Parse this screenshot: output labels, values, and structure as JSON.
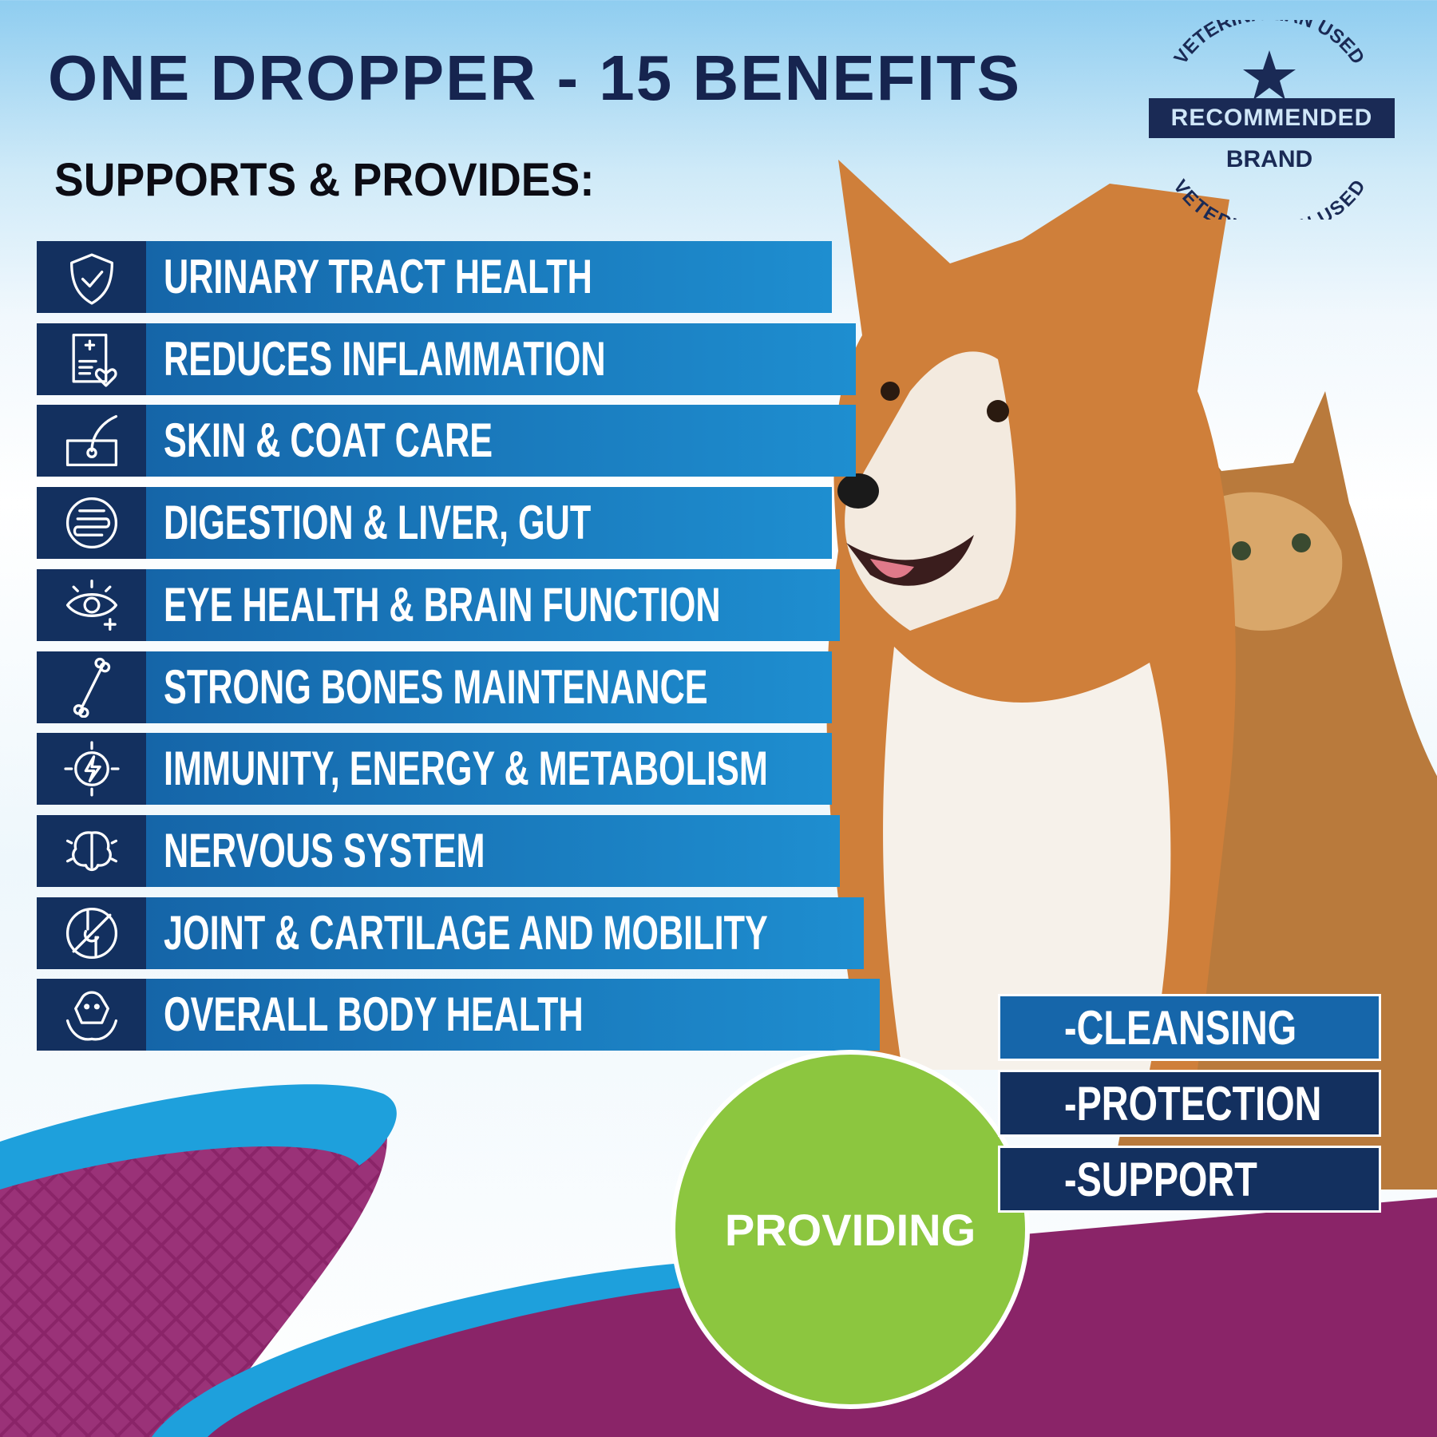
{
  "title": "ONE DROPPER - 15 BENEFITS",
  "subtitle": "SUPPORTS & PROVIDES:",
  "badge": {
    "arc_top": "VETERINARIAN USED",
    "ribbon": "RECOMMENDED",
    "brand": "BRAND",
    "arc_bottom": "VETERINARIAN USED",
    "icon": "star-icon"
  },
  "benefits": [
    {
      "label": "URINARY TRACT HEALTH",
      "icon": "shield-check-icon"
    },
    {
      "label": "REDUCES INFLAMMATION",
      "icon": "medical-report-heart-icon"
    },
    {
      "label": "SKIN & COAT CARE",
      "icon": "skin-hair-icon"
    },
    {
      "label": "DIGESTION & LIVER, GUT",
      "icon": "intestine-icon"
    },
    {
      "label": "EYE HEALTH & BRAIN FUNCTION",
      "icon": "eye-plus-icon"
    },
    {
      "label": "STRONG BONES MAINTENANCE",
      "icon": "bone-icon"
    },
    {
      "label": "IMMUNITY, ENERGY & METABOLISM",
      "icon": "energy-bolt-icon"
    },
    {
      "label": "NERVOUS SYSTEM",
      "icon": "brain-icon"
    },
    {
      "label": "JOINT & CARTILAGE AND MOBILITY",
      "icon": "joint-icon"
    },
    {
      "label": "OVERALL BODY HEALTH",
      "icon": "dog-hands-icon"
    }
  ],
  "providing": {
    "label": "PROVIDING",
    "items": [
      "-CLEANSING",
      "-PROTECTION",
      "-SUPPORT"
    ]
  },
  "colors": {
    "navy": "#13305f",
    "blue": "#1e8ed0",
    "green": "#8cc63f",
    "purple": "#8a2468",
    "cyan": "#1ea0dc"
  }
}
